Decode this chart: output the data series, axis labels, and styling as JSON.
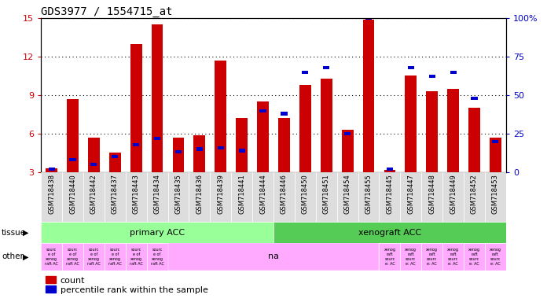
{
  "title": "GDS3977 / 1554715_at",
  "samples": [
    "GSM718438",
    "GSM718440",
    "GSM718442",
    "GSM718437",
    "GSM718443",
    "GSM718434",
    "GSM718435",
    "GSM718436",
    "GSM718439",
    "GSM718441",
    "GSM718444",
    "GSM718446",
    "GSM718450",
    "GSM718451",
    "GSM718454",
    "GSM718455",
    "GSM718445",
    "GSM718447",
    "GSM718448",
    "GSM718449",
    "GSM718452",
    "GSM718453"
  ],
  "count_values": [
    3.3,
    8.7,
    5.7,
    4.5,
    13.0,
    14.5,
    5.7,
    5.9,
    11.7,
    7.2,
    8.5,
    7.2,
    9.8,
    10.3,
    6.3,
    14.9,
    3.2,
    10.5,
    9.3,
    9.5,
    8.0,
    5.7
  ],
  "percentile_pct": [
    2,
    8,
    5,
    10,
    18,
    22,
    13,
    15,
    16,
    14,
    40,
    38,
    65,
    68,
    25,
    100,
    2,
    68,
    62,
    65,
    48,
    20
  ],
  "ylim_left": [
    3,
    15
  ],
  "ylim_right": [
    0,
    100
  ],
  "yticks_left": [
    3,
    6,
    9,
    12,
    15
  ],
  "yticks_right": [
    0,
    25,
    50,
    75,
    100
  ],
  "bar_color_red": "#cc0000",
  "bar_color_blue": "#0000cc",
  "primary_acc_count": 11,
  "tissue_label": "tissue",
  "other_label": "other",
  "tissue_primary": "primary ACC",
  "tissue_xenograft": "xenograft ACC",
  "tissue_primary_color": "#99ff99",
  "tissue_xenograft_color": "#55cc55",
  "other_color": "#ffaaff",
  "other_na_text": "na",
  "tick_color_left": "#cc0000",
  "tick_color_right": "#0000cc"
}
